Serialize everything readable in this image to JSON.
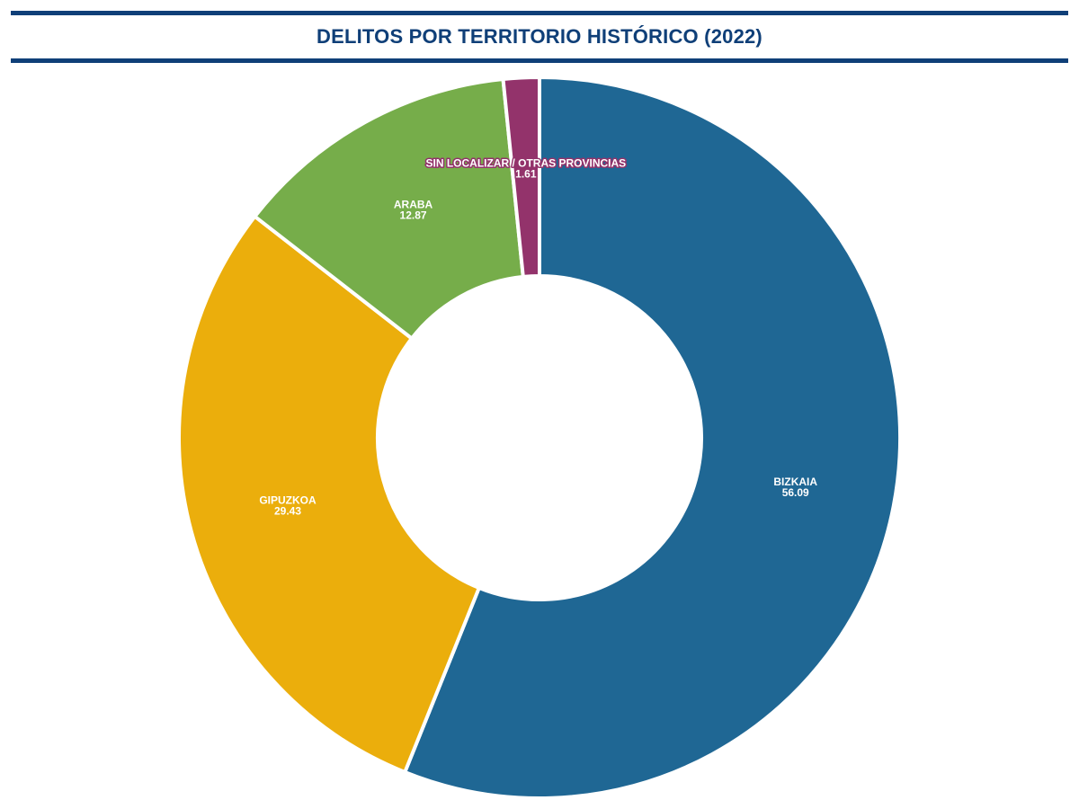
{
  "chart_data": {
    "type": "pie",
    "donut": true,
    "title": "DELITOS POR TERRITORIO HISTÓRICO (2022)",
    "categories": [
      "BIZKAIA",
      "GIPUZKOA",
      "ARABA",
      "SIN LOCALIZAR / OTRAS PROVINCIAS"
    ],
    "values": [
      56.09,
      29.43,
      12.87,
      1.61
    ],
    "value_labels": [
      "56.09",
      "29.43",
      "12.87",
      "1.61"
    ],
    "colors": [
      "#1f6794",
      "#ebae0c",
      "#76ad4a",
      "#93336b"
    ],
    "legend": "none"
  }
}
